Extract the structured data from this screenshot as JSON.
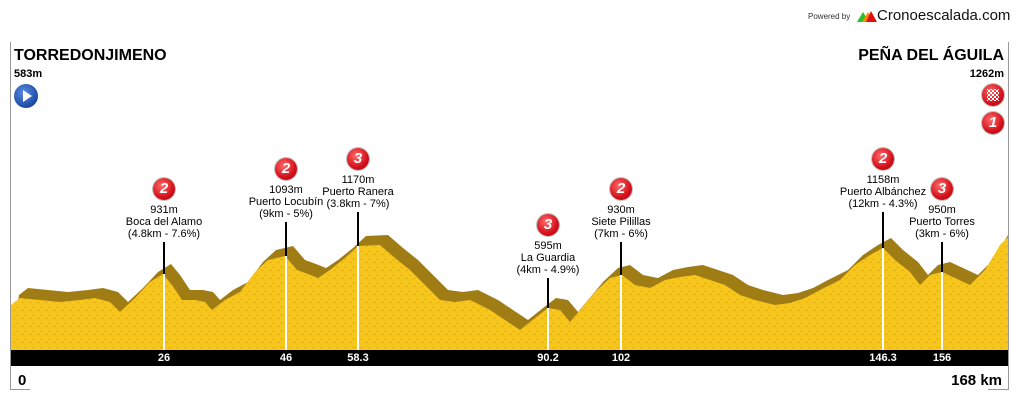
{
  "brand": {
    "powered_by": "Powered by",
    "name": "Cronoescalada.com"
  },
  "start": {
    "name": "TORREDONJIMENO",
    "altitude": "583m",
    "km": "0",
    "icon": "play-icon"
  },
  "finish": {
    "name": "PEÑA DEL ÁGUILA",
    "altitude": "1262m",
    "km": "168 km",
    "icon": "checkered-flag-icon",
    "category": "1"
  },
  "colors": {
    "profile": "#f7c61c",
    "shadow": "#a07c14",
    "bar": "#000000",
    "badge": "#d4101a",
    "start_icon": "#1f4fa8"
  },
  "climbs": [
    {
      "cat": "2",
      "alt": "931m",
      "name": "Boca del Alamo",
      "info": "(4.8km - 7.6%)",
      "km": "26"
    },
    {
      "cat": "2",
      "alt": "1093m",
      "name": "Puerto Locubín",
      "info": "(9km - 5%)",
      "km": "46"
    },
    {
      "cat": "3",
      "alt": "1170m",
      "name": "Puerto Ranera",
      "info": "(3.8km - 7%)",
      "km": "58.3"
    },
    {
      "cat": "3",
      "alt": "595m",
      "name": "La Guardia",
      "info": "(4km - 4.9%)",
      "km": "90.2"
    },
    {
      "cat": "2",
      "alt": "930m",
      "name": "Siete Pilillas",
      "info": "(7km - 6%)",
      "km": "102"
    },
    {
      "cat": "2",
      "alt": "1158m",
      "name": "Puerto Albánchez",
      "info": "(12km - 4.3%)",
      "km": "146.3"
    },
    {
      "cat": "3",
      "alt": "950m",
      "name": "Puerto Torres",
      "info": "(3km - 6%)",
      "km": "156"
    }
  ]
}
